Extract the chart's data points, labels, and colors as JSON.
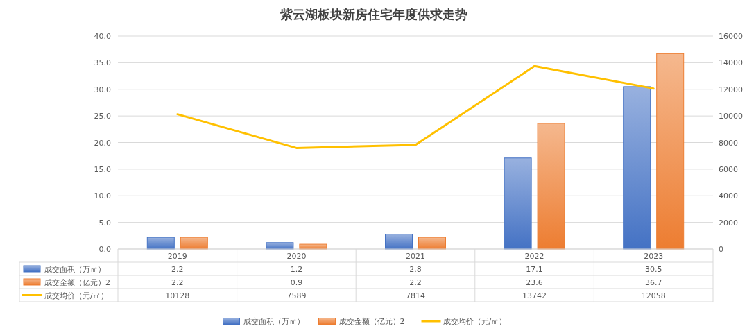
{
  "chart_data": {
    "type": "bar",
    "title": "紫云湖板块新房住宅年度供求走势",
    "categories": [
      "2019",
      "2020",
      "2021",
      "2022",
      "2023"
    ],
    "series": [
      {
        "name": "成交面积（万㎡）",
        "color": "#4472c4",
        "values": [
          2.2,
          1.2,
          2.8,
          17.1,
          30.5
        ]
      },
      {
        "name": "成交金额（亿元）2",
        "color": "#ed7d31",
        "values": [
          2.2,
          0.9,
          2.2,
          23.6,
          36.7
        ]
      },
      {
        "name": "成交均价（元/㎡）",
        "type": "line",
        "axis": "y2",
        "color": "#ffc000",
        "values": [
          10128,
          7589,
          7814,
          13742,
          12058
        ]
      }
    ],
    "ylim": [
      0,
      40
    ],
    "yticks": [
      {
        "value": 0,
        "label": "0.0"
      },
      {
        "value": 5,
        "label": "5.0"
      },
      {
        "value": 10,
        "label": "10.0"
      },
      {
        "value": 15,
        "label": "15.0"
      },
      {
        "value": 20,
        "label": "20.0"
      },
      {
        "value": 25,
        "label": "25.0"
      },
      {
        "value": 30,
        "label": "30.0"
      },
      {
        "value": 35,
        "label": "35.0"
      },
      {
        "value": 40,
        "label": "40.0"
      }
    ],
    "y2lim": [
      0,
      16000
    ],
    "y2ticks": [
      0,
      2000,
      4000,
      6000,
      8000,
      10000,
      12000,
      14000,
      16000
    ],
    "grid": "y",
    "legend": "bottom",
    "data_labels": true,
    "marker": "none",
    "line_style": "solid"
  }
}
